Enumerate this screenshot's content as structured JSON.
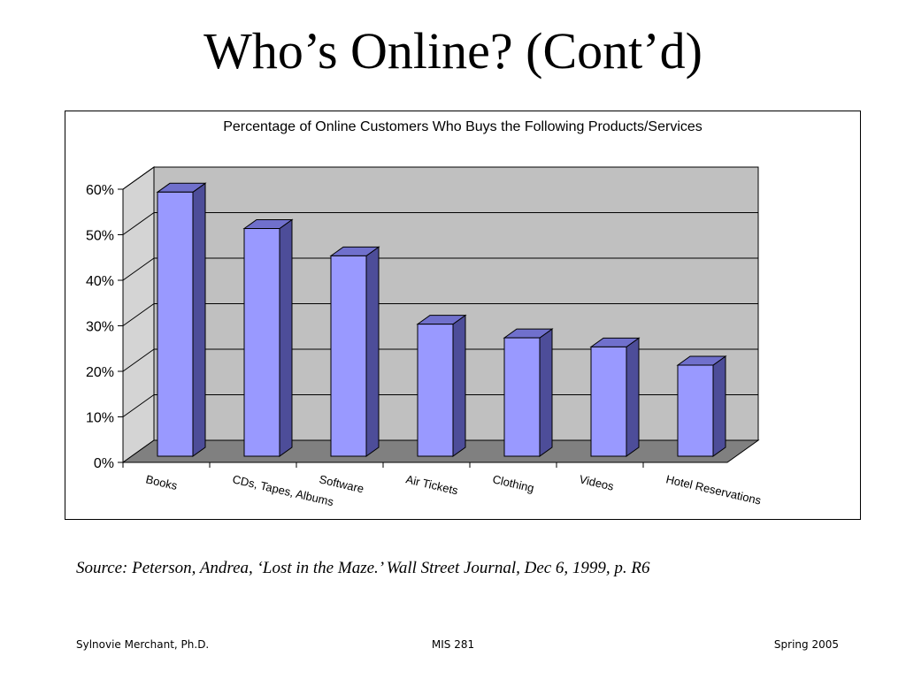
{
  "slide": {
    "title": "Who’s Online? (Cont’d)",
    "source": "Source: Peterson, Andrea, ‘Lost in the Maze.’ Wall Street Journal, Dec 6, 1999, p. R6"
  },
  "footer": {
    "left": "Sylnovie Merchant, Ph.D.",
    "center": "MIS 281",
    "right": "Spring 2005"
  },
  "chart_data": {
    "type": "bar",
    "style": "3d-column",
    "title": "Percentage of Online Customers Who Buys the Following Products/Services",
    "xlabel": "",
    "ylabel": "",
    "categories": [
      "Books",
      "CDs, Tapes, Albums",
      "Software",
      "Air Tickets",
      "Clothing",
      "Videos",
      "Hotel Reservations"
    ],
    "values": [
      58,
      50,
      44,
      29,
      26,
      24,
      20
    ],
    "ylim": [
      0,
      60
    ],
    "yticks": [
      0,
      10,
      20,
      30,
      40,
      50,
      60
    ],
    "ytick_labels": [
      "0%",
      "10%",
      "20%",
      "30%",
      "40%",
      "50%",
      "60%"
    ],
    "grid": true,
    "legend": "none",
    "colors": {
      "bar_front": "#9999ff",
      "bar_side": "#4d4d99",
      "bar_top": "#7070cc",
      "back_wall": "#c0c0c0",
      "side_wall": "#d4d4d4",
      "floor": "#808080"
    }
  }
}
